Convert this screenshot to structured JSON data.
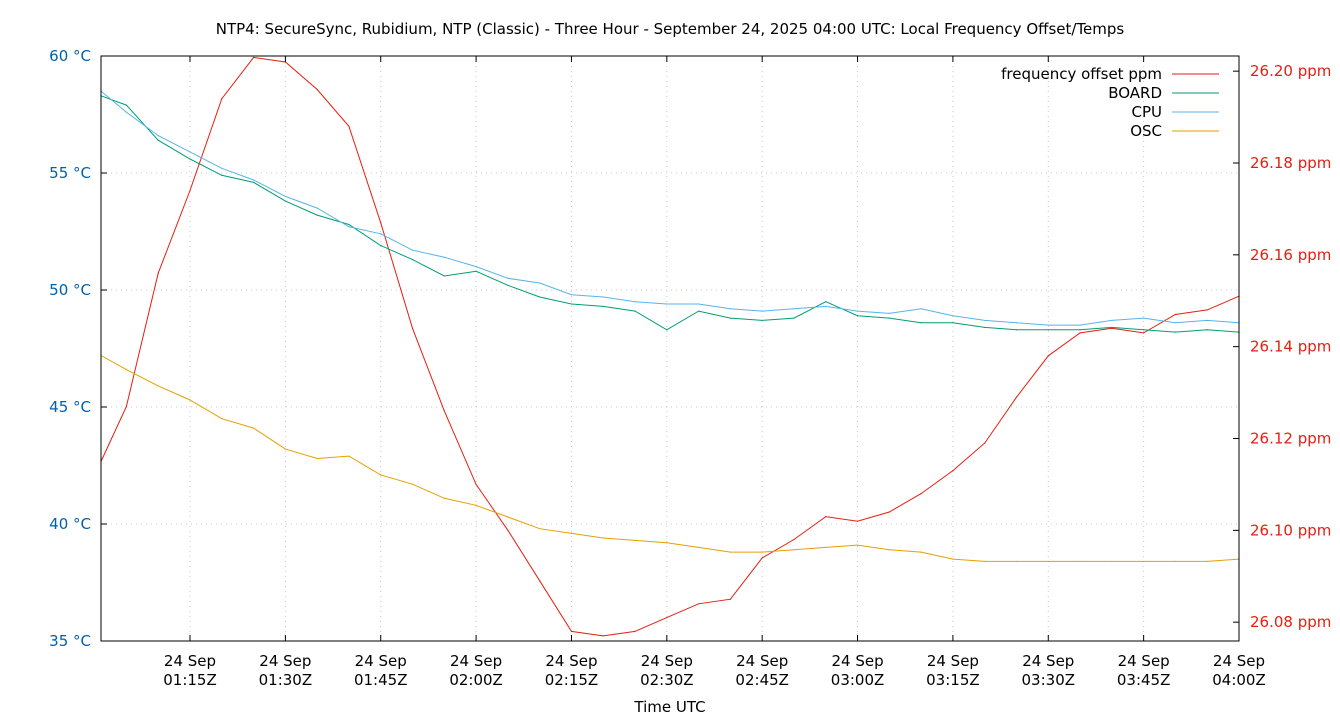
{
  "chart_data": {
    "type": "line",
    "title": "NTP4: SecureSync, Rubidium, NTP (Classic) - Three Hour - September 24, 2025 04:00 UTC: Local Frequency Offset/Temps",
    "xlabel": "Time UTC",
    "ylabel_left": "",
    "ylabel_right": "",
    "xlim": [
      "01:01",
      "04:00"
    ],
    "ylim_left": [
      35,
      60
    ],
    "ylim_right": [
      26.0759,
      26.2033
    ],
    "grid": true,
    "legend_position": "top-right",
    "x_ticks": [
      {
        "t": "01:15",
        "label1": "24 Sep",
        "label2": "01:15Z"
      },
      {
        "t": "01:30",
        "label1": "24 Sep",
        "label2": "01:30Z"
      },
      {
        "t": "01:45",
        "label1": "24 Sep",
        "label2": "01:45Z"
      },
      {
        "t": "02:00",
        "label1": "24 Sep",
        "label2": "02:00Z"
      },
      {
        "t": "02:15",
        "label1": "24 Sep",
        "label2": "02:15Z"
      },
      {
        "t": "02:30",
        "label1": "24 Sep",
        "label2": "02:30Z"
      },
      {
        "t": "02:45",
        "label1": "24 Sep",
        "label2": "02:45Z"
      },
      {
        "t": "03:00",
        "label1": "24 Sep",
        "label2": "03:00Z"
      },
      {
        "t": "03:15",
        "label1": "24 Sep",
        "label2": "03:15Z"
      },
      {
        "t": "03:30",
        "label1": "24 Sep",
        "label2": "03:30Z"
      },
      {
        "t": "03:45",
        "label1": "24 Sep",
        "label2": "03:45Z"
      },
      {
        "t": "04:00",
        "label1": "24 Sep",
        "label2": "04:00Z"
      }
    ],
    "y_ticks_left": [
      {
        "v": 35,
        "label": "35 °C"
      },
      {
        "v": 40,
        "label": "40 °C"
      },
      {
        "v": 45,
        "label": "45 °C"
      },
      {
        "v": 50,
        "label": "50 °C"
      },
      {
        "v": 55,
        "label": "55 °C"
      },
      {
        "v": 60,
        "label": "60 °C"
      }
    ],
    "y_ticks_right": [
      {
        "v": 26.08,
        "label": "26.08 ppm"
      },
      {
        "v": 26.1,
        "label": "26.10 ppm"
      },
      {
        "v": 26.12,
        "label": "26.12 ppm"
      },
      {
        "v": 26.14,
        "label": "26.14 ppm"
      },
      {
        "v": 26.16,
        "label": "26.16 ppm"
      },
      {
        "v": 26.18,
        "label": "26.18 ppm"
      },
      {
        "v": 26.2,
        "label": "26.20 ppm"
      }
    ],
    "left_axis_color": "#0060ad",
    "right_axis_color": "#e51e10",
    "x": [
      "01:01",
      "01:05",
      "01:10",
      "01:15",
      "01:20",
      "01:25",
      "01:30",
      "01:35",
      "01:40",
      "01:45",
      "01:50",
      "01:55",
      "02:00",
      "02:05",
      "02:10",
      "02:15",
      "02:20",
      "02:25",
      "02:30",
      "02:35",
      "02:40",
      "02:45",
      "02:50",
      "02:55",
      "03:00",
      "03:05",
      "03:10",
      "03:15",
      "03:20",
      "03:25",
      "03:30",
      "03:35",
      "03:40",
      "03:45",
      "03:50",
      "03:55",
      "04:00"
    ],
    "series": [
      {
        "name": "frequency offset ppm",
        "axis": "right",
        "color": "#e51e10",
        "values": [
          26.115,
          26.127,
          26.156,
          26.174,
          26.194,
          26.203,
          26.202,
          26.196,
          26.188,
          26.167,
          26.144,
          26.126,
          26.11,
          26.1,
          26.089,
          26.078,
          26.077,
          26.078,
          26.081,
          26.084,
          26.085,
          26.094,
          26.098,
          26.103,
          26.102,
          26.104,
          26.108,
          26.113,
          26.119,
          26.129,
          26.138,
          26.143,
          26.144,
          26.143,
          26.147,
          26.148,
          26.151
        ]
      },
      {
        "name": "BOARD",
        "axis": "left",
        "color": "#009e73",
        "values": [
          58.3,
          57.9,
          56.4,
          55.6,
          54.9,
          54.6,
          53.8,
          53.2,
          52.8,
          51.9,
          51.3,
          50.6,
          50.8,
          50.2,
          49.7,
          49.4,
          49.3,
          49.1,
          48.3,
          49.1,
          48.8,
          48.7,
          48.8,
          49.5,
          48.9,
          48.8,
          48.6,
          48.6,
          48.4,
          48.3,
          48.3,
          48.3,
          48.4,
          48.3,
          48.2,
          48.3,
          48.2
        ]
      },
      {
        "name": "CPU",
        "axis": "left",
        "color": "#56b4e9",
        "values": [
          58.5,
          57.6,
          56.6,
          55.9,
          55.2,
          54.7,
          54.0,
          53.5,
          52.7,
          52.4,
          51.7,
          51.4,
          51.0,
          50.5,
          50.3,
          49.8,
          49.7,
          49.5,
          49.4,
          49.4,
          49.2,
          49.1,
          49.2,
          49.3,
          49.1,
          49.0,
          49.2,
          48.9,
          48.7,
          48.6,
          48.5,
          48.5,
          48.7,
          48.8,
          48.6,
          48.7,
          48.6
        ]
      },
      {
        "name": "OSC",
        "axis": "left",
        "color": "#e69f00",
        "values": [
          47.2,
          46.6,
          45.9,
          45.3,
          44.5,
          44.1,
          43.2,
          42.8,
          42.9,
          42.1,
          41.7,
          41.1,
          40.8,
          40.3,
          39.8,
          39.6,
          39.4,
          39.3,
          39.2,
          39.0,
          38.8,
          38.8,
          38.9,
          39.0,
          39.1,
          38.9,
          38.8,
          38.5,
          38.4,
          38.4,
          38.4,
          38.4,
          38.4,
          38.4,
          38.4,
          38.4,
          38.5
        ]
      }
    ]
  }
}
